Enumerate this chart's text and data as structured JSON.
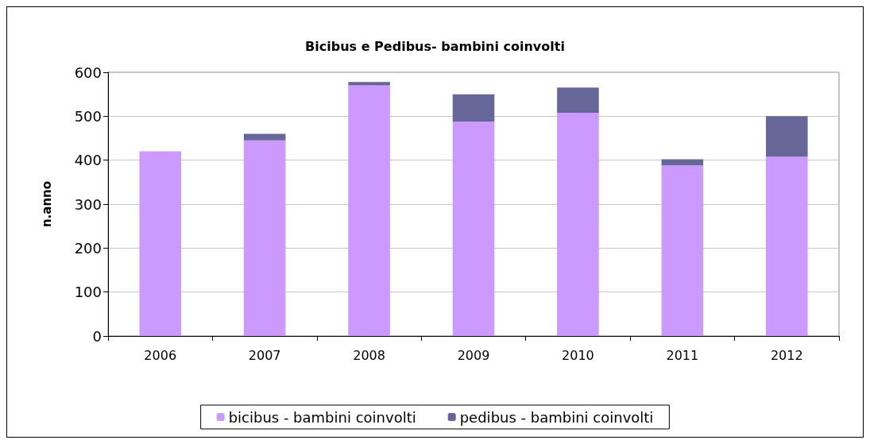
{
  "chart_data": {
    "type": "bar",
    "title": "Bicibus e Pedibus- bambini coinvolti",
    "ylabel": "n.anno",
    "categories": [
      "2006",
      "2007",
      "2008",
      "2009",
      "2010",
      "2011",
      "2012"
    ],
    "series": [
      {
        "name": "bicibus - bambini coinvolti",
        "color": "#cc99ff",
        "values": [
          420,
          445,
          570,
          488,
          508,
          388,
          408
        ]
      },
      {
        "name": "pedibus - bambini coinvolti",
        "color": "#666699",
        "values": [
          0,
          15,
          8,
          62,
          57,
          14,
          92
        ]
      }
    ],
    "stacked": true,
    "ylim": [
      0,
      600
    ],
    "yticks": [
      0,
      100,
      200,
      300,
      400,
      500,
      600
    ],
    "grid": "y",
    "legend": "bottom"
  }
}
